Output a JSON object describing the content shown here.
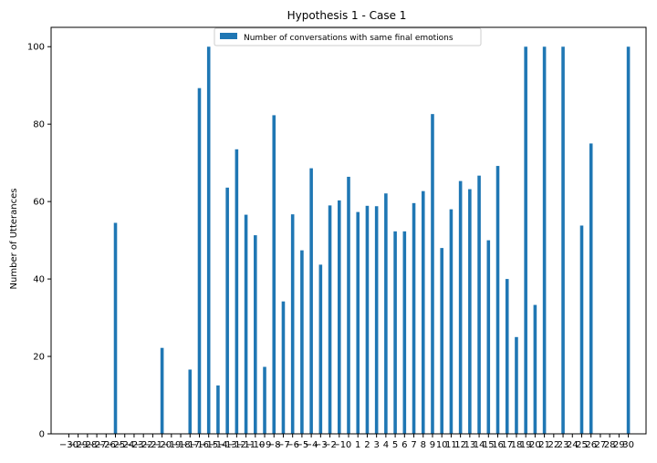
{
  "chart_data": {
    "type": "bar",
    "title": "Hypothesis 1 - Case 1",
    "xlabel": "",
    "ylabel": "Number of Utterances",
    "ylim": [
      0,
      105
    ],
    "xlim": [
      -31.9,
      31.9
    ],
    "yticks": [
      0,
      20,
      40,
      60,
      80,
      100
    ],
    "grid": false,
    "legend_position": "top-center",
    "bar_color": "#1f77b4",
    "categories": [
      "−30",
      "−29",
      "−28",
      "−27",
      "−26",
      "−25",
      "−24",
      "−23",
      "−22",
      "−21",
      "−20",
      "−19",
      "−18",
      "−17",
      "−16",
      "−15",
      "−14",
      "−13",
      "−12",
      "−11",
      "−10",
      "−9",
      "−8",
      "−7",
      "−6",
      "−5",
      "−4",
      "−3",
      "−2",
      "−1",
      "0",
      "1",
      "2",
      "3",
      "4",
      "5",
      "6",
      "7",
      "8",
      "9",
      "10",
      "11",
      "12",
      "13",
      "14",
      "15",
      "16",
      "17",
      "18",
      "19",
      "20",
      "21",
      "22",
      "23",
      "24",
      "25",
      "26",
      "27",
      "28",
      "29",
      "30"
    ],
    "x": [
      -30,
      -29,
      -28,
      -27,
      -26,
      -25,
      -24,
      -23,
      -22,
      -21,
      -20,
      -19,
      -18,
      -17,
      -16,
      -15,
      -14,
      -13,
      -12,
      -11,
      -10,
      -9,
      -8,
      -7,
      -6,
      -5,
      -4,
      -3,
      -2,
      -1,
      0,
      1,
      2,
      3,
      4,
      5,
      6,
      7,
      8,
      9,
      10,
      11,
      12,
      13,
      14,
      15,
      16,
      17,
      18,
      19,
      20,
      21,
      22,
      23,
      24,
      25,
      26,
      27,
      28,
      29,
      30
    ],
    "series": [
      {
        "name": "Number of conversations with same final emotions",
        "values": [
          0,
          0,
          0,
          0,
          0,
          54.5,
          0,
          0,
          0,
          0,
          22.2,
          0,
          0,
          16.6,
          89.3,
          100,
          12.5,
          63.6,
          73.5,
          56.6,
          51.3,
          17.3,
          82.3,
          34.2,
          56.7,
          47.4,
          68.6,
          43.7,
          59,
          60.3,
          66.4,
          57.3,
          58.9,
          58.8,
          62.1,
          52.3,
          52.3,
          59.6,
          62.7,
          82.6,
          48,
          58,
          65.3,
          63.2,
          66.7,
          50,
          69.2,
          40,
          25,
          100,
          33.3,
          100,
          0,
          100,
          0,
          53.8,
          75,
          0,
          0,
          0,
          100
        ]
      }
    ]
  }
}
